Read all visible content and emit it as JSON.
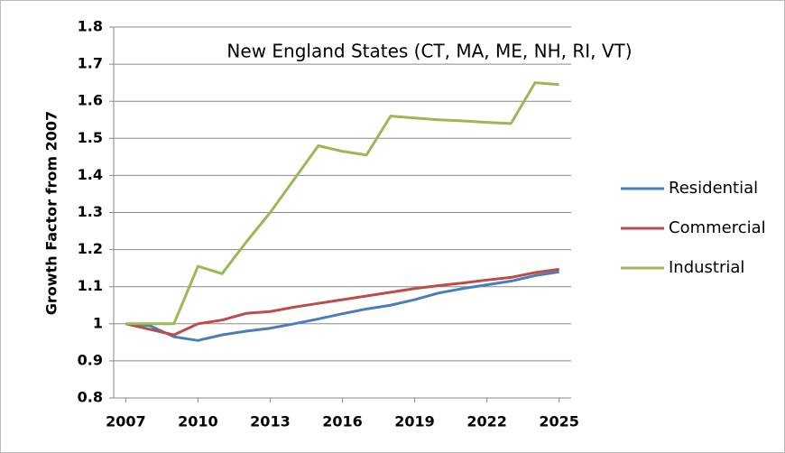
{
  "chart_data": {
    "type": "line",
    "title": "New England States (CT, MA, ME, NH, RI, VT)",
    "y_label": "Growth Factor from 2007",
    "x": [
      2007,
      2008,
      2009,
      2010,
      2011,
      2012,
      2013,
      2014,
      2015,
      2016,
      2017,
      2018,
      2019,
      2020,
      2021,
      2022,
      2023,
      2024,
      2025
    ],
    "series": [
      {
        "name": "Residential",
        "color": "#4a7ebb",
        "values": [
          1.0,
          0.995,
          0.965,
          0.955,
          0.97,
          0.98,
          0.988,
          1.0,
          1.013,
          1.027,
          1.04,
          1.05,
          1.065,
          1.083,
          1.095,
          1.105,
          1.115,
          1.13,
          1.14
        ]
      },
      {
        "name": "Commercial",
        "color": "#be4b48",
        "values": [
          1.0,
          0.985,
          0.97,
          1.0,
          1.01,
          1.028,
          1.033,
          1.045,
          1.055,
          1.065,
          1.075,
          1.085,
          1.095,
          1.103,
          1.11,
          1.118,
          1.125,
          1.138,
          1.147
        ]
      },
      {
        "name": "Industrial",
        "color": "#98b954",
        "values": [
          1.0,
          1.0,
          1.0,
          1.155,
          1.135,
          1.22,
          1.3,
          1.39,
          1.48,
          1.465,
          1.455,
          1.56,
          1.555,
          1.55,
          1.547,
          1.543,
          1.54,
          1.65,
          1.645
        ]
      }
    ],
    "xlim": [
      2006.5,
      2025.5
    ],
    "xticks": [
      2007,
      2010,
      2013,
      2016,
      2019,
      2022,
      2025
    ],
    "ylim": [
      0.8,
      1.8
    ],
    "yticks": [
      0.8,
      0.9,
      1,
      1.1,
      1.2,
      1.3,
      1.4,
      1.5,
      1.6,
      1.7,
      1.8
    ],
    "grid": true,
    "legend": "right"
  }
}
